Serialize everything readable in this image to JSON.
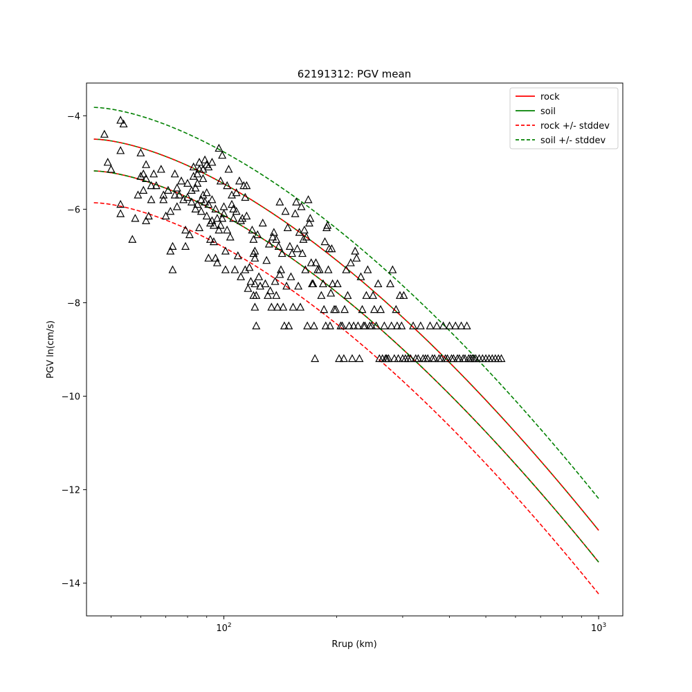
{
  "chart_data": {
    "type": "scatter",
    "title": "62191312: PGV mean",
    "xlabel": "Rrup (km)",
    "ylabel": "PGV ln(cm/s)",
    "xscale": "log",
    "xlim": [
      43,
      1160
    ],
    "ylim": [
      -14.7,
      -3.3
    ],
    "x_ticks": [
      {
        "value": 100,
        "label": "10",
        "exponent": "2"
      },
      {
        "value": 1000,
        "label": "10",
        "exponent": "3"
      }
    ],
    "y_ticks": [
      -4,
      -6,
      -8,
      -10,
      -12,
      -14
    ],
    "y_tick_labels": [
      "−4",
      "−6",
      "−8",
      "−10",
      "−12",
      "−14"
    ],
    "grid": false,
    "legend": {
      "placement": "upper right",
      "entries": [
        {
          "label": "rock",
          "color": "#ff0000",
          "style": "solid"
        },
        {
          "label": "soil",
          "color": "#008000",
          "style": "solid"
        },
        {
          "label": "rock +/- stddev",
          "color": "#ff0000",
          "style": "dashed"
        },
        {
          "label": "soil +/- stddev",
          "color": "#008000",
          "style": "dashed"
        }
      ]
    },
    "series": [
      {
        "name": "rock",
        "role": "mean",
        "color": "#ff0000",
        "style": "solid",
        "x": [
          45,
          1000
        ],
        "y": [
          -5.18,
          -13.55
        ],
        "exponent": 1.6
      },
      {
        "name": "soil",
        "role": "mean",
        "color": "#008000",
        "style": "solid",
        "x": [
          45,
          1000
        ],
        "y": [
          -4.5,
          -12.87
        ],
        "exponent": 1.6
      },
      {
        "name": "rock +/- stddev",
        "role": "plus",
        "color": "#ff0000",
        "style": "dashed",
        "x": [
          45,
          1000
        ],
        "y": [
          -4.5,
          -12.87
        ],
        "exponent": 1.6
      },
      {
        "name": "rock +/- stddev",
        "role": "minus",
        "color": "#ff0000",
        "style": "dashed",
        "x": [
          45,
          1000
        ],
        "y": [
          -5.86,
          -14.23
        ],
        "exponent": 1.6
      },
      {
        "name": "soil +/- stddev",
        "role": "plus",
        "color": "#008000",
        "style": "dashed",
        "x": [
          45,
          1000
        ],
        "y": [
          -3.82,
          -12.19
        ],
        "exponent": 1.6
      },
      {
        "name": "soil +/- stddev",
        "role": "minus",
        "color": "#008000",
        "style": "dashed",
        "x": [
          45,
          1000
        ],
        "y": [
          -5.18,
          -13.55
        ],
        "exponent": 1.6
      }
    ],
    "points": [
      [
        48,
        -4.4
      ],
      [
        49,
        -5.0
      ],
      [
        50,
        -5.15
      ],
      [
        53,
        -4.1
      ],
      [
        54,
        -4.18
      ],
      [
        53,
        -4.75
      ],
      [
        53,
        -5.9
      ],
      [
        53,
        -6.1
      ],
      [
        57,
        -6.65
      ],
      [
        58,
        -6.2
      ],
      [
        59,
        -5.7
      ],
      [
        60,
        -4.8
      ],
      [
        60,
        -5.3
      ],
      [
        61,
        -5.6
      ],
      [
        61,
        -5.25
      ],
      [
        62,
        -5.35
      ],
      [
        62,
        -5.05
      ],
      [
        62,
        -6.25
      ],
      [
        63,
        -6.15
      ],
      [
        64,
        -5.8
      ],
      [
        64,
        -5.5
      ],
      [
        65,
        -5.25
      ],
      [
        66,
        -5.5
      ],
      [
        68,
        -5.15
      ],
      [
        69,
        -5.8
      ],
      [
        69,
        -5.7
      ],
      [
        70,
        -6.15
      ],
      [
        71,
        -5.6
      ],
      [
        72,
        -6.05
      ],
      [
        72,
        -6.9
      ],
      [
        73,
        -7.3
      ],
      [
        73,
        -6.8
      ],
      [
        74,
        -5.7
      ],
      [
        74,
        -5.25
      ],
      [
        75,
        -5.95
      ],
      [
        75,
        -5.55
      ],
      [
        76,
        -5.7
      ],
      [
        77,
        -5.4
      ],
      [
        78,
        -5.8
      ],
      [
        79,
        -6.45
      ],
      [
        79,
        -6.8
      ],
      [
        80,
        -5.75
      ],
      [
        80,
        -5.45
      ],
      [
        81,
        -6.55
      ],
      [
        82,
        -5.85
      ],
      [
        82,
        -5.6
      ],
      [
        83,
        -5.3
      ],
      [
        83,
        -5.1
      ],
      [
        84,
        -6.0
      ],
      [
        84,
        -5.55
      ],
      [
        85,
        -5.9
      ],
      [
        85,
        -5.25
      ],
      [
        85,
        -5.45
      ],
      [
        86,
        -5.15
      ],
      [
        86,
        -5.0
      ],
      [
        86,
        -6.4
      ],
      [
        87,
        -5.8
      ],
      [
        87,
        -6.05
      ],
      [
        88,
        -5.7
      ],
      [
        88,
        -5.35
      ],
      [
        88,
        -5.15
      ],
      [
        89,
        -4.95
      ],
      [
        89,
        -5.85
      ],
      [
        90,
        -5.05
      ],
      [
        90,
        -5.65
      ],
      [
        90,
        -6.15
      ],
      [
        91,
        -5.1
      ],
      [
        91,
        -5.9
      ],
      [
        91,
        -7.05
      ],
      [
        92,
        -6.3
      ],
      [
        92,
        -6.65
      ],
      [
        93,
        -5.0
      ],
      [
        93,
        -5.8
      ],
      [
        93,
        -6.25
      ],
      [
        94,
        -6.35
      ],
      [
        94,
        -6.7
      ],
      [
        95,
        -7.05
      ],
      [
        95,
        -6.0
      ],
      [
        96,
        -7.15
      ],
      [
        96,
        -6.2
      ],
      [
        97,
        -4.7
      ],
      [
        97,
        -6.45
      ],
      [
        98,
        -6.35
      ],
      [
        98,
        -5.4
      ],
      [
        99,
        -4.85
      ],
      [
        99,
        -6.2
      ],
      [
        100,
        -6.1
      ],
      [
        100,
        -5.95
      ],
      [
        101,
        -7.3
      ],
      [
        101,
        -6.9
      ],
      [
        102,
        -6.45
      ],
      [
        102,
        -5.5
      ],
      [
        103,
        -5.15
      ],
      [
        104,
        -6.6
      ],
      [
        105,
        -5.7
      ],
      [
        105,
        -5.9
      ],
      [
        106,
        -6.0
      ],
      [
        106,
        -6.2
      ],
      [
        107,
        -7.3
      ],
      [
        108,
        -5.65
      ],
      [
        108,
        -6.05
      ],
      [
        109,
        -7.0
      ],
      [
        110,
        -5.4
      ],
      [
        111,
        -6.25
      ],
      [
        111,
        -7.45
      ],
      [
        112,
        -6.2
      ],
      [
        113,
        -5.5
      ],
      [
        114,
        -5.75
      ],
      [
        114,
        -7.3
      ],
      [
        115,
        -5.5
      ],
      [
        115,
        -6.15
      ],
      [
        116,
        -7.7
      ],
      [
        117,
        -7.25
      ],
      [
        118,
        -7.55
      ],
      [
        119,
        -6.45
      ],
      [
        120,
        -7.85
      ],
      [
        120,
        -6.95
      ],
      [
        120,
        -6.65
      ],
      [
        121,
        -6.9
      ],
      [
        121,
        -7.05
      ],
      [
        121,
        -7.6
      ],
      [
        121,
        -8.1
      ],
      [
        122,
        -8.5
      ],
      [
        122,
        -7.85
      ],
      [
        123,
        -6.55
      ],
      [
        124,
        -7.45
      ],
      [
        125,
        -7.65
      ],
      [
        127,
        -6.3
      ],
      [
        129,
        -7.6
      ],
      [
        130,
        -7.1
      ],
      [
        131,
        -7.85
      ],
      [
        132,
        -6.75
      ],
      [
        133,
        -7.75
      ],
      [
        134,
        -8.1
      ],
      [
        135,
        -6.6
      ],
      [
        136,
        -6.5
      ],
      [
        137,
        -7.55
      ],
      [
        138,
        -7.85
      ],
      [
        138,
        -6.65
      ],
      [
        139,
        -8.1
      ],
      [
        140,
        -6.8
      ],
      [
        141,
        -7.4
      ],
      [
        141,
        -5.85
      ],
      [
        142,
        -7.3
      ],
      [
        143,
        -6.95
      ],
      [
        144,
        -8.1
      ],
      [
        145,
        -8.5
      ],
      [
        146,
        -6.05
      ],
      [
        147,
        -7.65
      ],
      [
        148,
        -6.4
      ],
      [
        149,
        -8.5
      ],
      [
        150,
        -6.8
      ],
      [
        151,
        -7.45
      ],
      [
        152,
        -6.95
      ],
      [
        153,
        -8.1
      ],
      [
        155,
        -6.1
      ],
      [
        156,
        -5.85
      ],
      [
        157,
        -6.85
      ],
      [
        158,
        -7.65
      ],
      [
        159,
        -6.5
      ],
      [
        160,
        -8.1
      ],
      [
        161,
        -5.95
      ],
      [
        162,
        -6.95
      ],
      [
        163,
        -6.65
      ],
      [
        164,
        -6.45
      ],
      [
        165,
        -7.3
      ],
      [
        166,
        -6.6
      ],
      [
        167,
        -8.5
      ],
      [
        168,
        -5.8
      ],
      [
        169,
        -6.3
      ],
      [
        170,
        -6.2
      ],
      [
        171,
        -7.15
      ],
      [
        172,
        -7.6
      ],
      [
        173,
        -7.6
      ],
      [
        174,
        -8.5
      ],
      [
        175,
        -9.2
      ],
      [
        176,
        -7.15
      ],
      [
        178,
        -7.3
      ],
      [
        180,
        -7.3
      ],
      [
        182,
        -7.85
      ],
      [
        184,
        -7.6
      ],
      [
        185,
        -8.15
      ],
      [
        186,
        -6.7
      ],
      [
        187,
        -8.5
      ],
      [
        188,
        -6.4
      ],
      [
        189,
        -6.35
      ],
      [
        190,
        -7.3
      ],
      [
        191,
        -6.85
      ],
      [
        192,
        -8.5
      ],
      [
        193,
        -7.8
      ],
      [
        194,
        -6.85
      ],
      [
        195,
        -7.6
      ],
      [
        197,
        -8.15
      ],
      [
        199,
        -8.15
      ],
      [
        201,
        -7.6
      ],
      [
        203,
        -9.2
      ],
      [
        205,
        -8.5
      ],
      [
        207,
        -8.5
      ],
      [
        209,
        -9.2
      ],
      [
        210,
        -8.15
      ],
      [
        212,
        -7.3
      ],
      [
        214,
        -7.85
      ],
      [
        216,
        -8.5
      ],
      [
        218,
        -7.15
      ],
      [
        220,
        -9.2
      ],
      [
        222,
        -8.5
      ],
      [
        224,
        -6.9
      ],
      [
        226,
        -7.05
      ],
      [
        228,
        -8.5
      ],
      [
        230,
        -9.2
      ],
      [
        232,
        -7.45
      ],
      [
        234,
        -8.15
      ],
      [
        236,
        -8.5
      ],
      [
        238,
        -8.5
      ],
      [
        240,
        -7.85
      ],
      [
        242,
        -7.3
      ],
      [
        245,
        -8.5
      ],
      [
        248,
        -8.5
      ],
      [
        250,
        -7.85
      ],
      [
        252,
        -8.15
      ],
      [
        255,
        -8.5
      ],
      [
        258,
        -7.6
      ],
      [
        260,
        -9.2
      ],
      [
        262,
        -8.15
      ],
      [
        265,
        -9.2
      ],
      [
        268,
        -8.5
      ],
      [
        270,
        -9.2
      ],
      [
        272,
        -9.2
      ],
      [
        275,
        -9.2
      ],
      [
        278,
        -7.6
      ],
      [
        280,
        -8.5
      ],
      [
        282,
        -7.3
      ],
      [
        285,
        -9.2
      ],
      [
        288,
        -8.15
      ],
      [
        290,
        -8.5
      ],
      [
        292,
        -9.2
      ],
      [
        295,
        -7.85
      ],
      [
        298,
        -8.5
      ],
      [
        300,
        -9.2
      ],
      [
        302,
        -7.85
      ],
      [
        305,
        -9.2
      ],
      [
        310,
        -9.2
      ],
      [
        315,
        -9.2
      ],
      [
        320,
        -8.5
      ],
      [
        325,
        -9.2
      ],
      [
        330,
        -9.2
      ],
      [
        335,
        -8.5
      ],
      [
        340,
        -9.2
      ],
      [
        345,
        -9.2
      ],
      [
        350,
        -9.2
      ],
      [
        355,
        -8.5
      ],
      [
        360,
        -9.2
      ],
      [
        365,
        -9.2
      ],
      [
        370,
        -8.5
      ],
      [
        375,
        -9.2
      ],
      [
        380,
        -9.2
      ],
      [
        385,
        -8.5
      ],
      [
        390,
        -9.2
      ],
      [
        395,
        -9.2
      ],
      [
        400,
        -8.5
      ],
      [
        405,
        -9.2
      ],
      [
        410,
        -9.2
      ],
      [
        415,
        -8.5
      ],
      [
        420,
        -9.2
      ],
      [
        425,
        -9.2
      ],
      [
        430,
        -8.5
      ],
      [
        435,
        -9.2
      ],
      [
        440,
        -9.2
      ],
      [
        445,
        -8.5
      ],
      [
        450,
        -9.2
      ],
      [
        455,
        -9.2
      ],
      [
        460,
        -9.2
      ],
      [
        465,
        -9.2
      ],
      [
        470,
        -9.2
      ],
      [
        480,
        -9.2
      ],
      [
        490,
        -9.2
      ],
      [
        500,
        -9.2
      ],
      [
        510,
        -9.2
      ],
      [
        520,
        -9.2
      ],
      [
        530,
        -9.2
      ],
      [
        540,
        -9.2
      ],
      [
        550,
        -9.2
      ]
    ],
    "marker": {
      "shape": "triangle",
      "filled": false,
      "color": "#000000"
    }
  }
}
